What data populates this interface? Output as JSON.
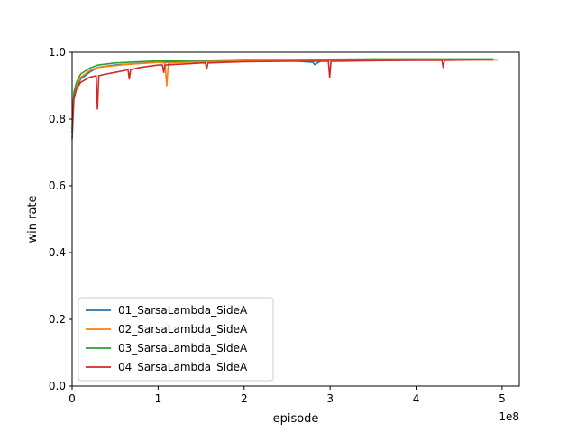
{
  "chart_data": {
    "type": "line",
    "title": "",
    "xlabel": "episode",
    "ylabel": "win rate",
    "x_offset_label": "1e8",
    "xlim": [
      0,
      520000000
    ],
    "ylim": [
      0.0,
      1.0
    ],
    "x_ticks": [
      0,
      100000000,
      200000000,
      300000000,
      400000000,
      500000000
    ],
    "x_tick_labels": [
      "0",
      "1",
      "2",
      "3",
      "4",
      "5"
    ],
    "y_ticks": [
      0.0,
      0.2,
      0.4,
      0.6,
      0.8,
      1.0
    ],
    "y_tick_labels": [
      "0.0",
      "0.2",
      "0.4",
      "0.6",
      "0.8",
      "1.0"
    ],
    "grid": false,
    "legend_position": "lower-left",
    "series": [
      {
        "name": "01_SarsaLambda_SideA",
        "color": "#1f77b4",
        "x": [
          0,
          2000000,
          5000000,
          10000000,
          20000000,
          30000000,
          50000000,
          80000000,
          100000000,
          150000000,
          200000000,
          250000000,
          280000000,
          282000000,
          290000000,
          350000000,
          400000000,
          450000000,
          480000000,
          490000000
        ],
        "y": [
          0.74,
          0.86,
          0.89,
          0.92,
          0.94,
          0.955,
          0.962,
          0.967,
          0.97,
          0.972,
          0.975,
          0.976,
          0.97,
          0.963,
          0.975,
          0.978,
          0.978,
          0.978,
          0.978,
          0.978
        ]
      },
      {
        "name": "02_SarsaLambda_SideA",
        "color": "#ff7f0e",
        "x": [
          0,
          2000000,
          5000000,
          10000000,
          20000000,
          30000000,
          60000000,
          100000000,
          108000000,
          110000000,
          112000000,
          150000000,
          200000000,
          300000000,
          400000000,
          450000000,
          490000000
        ],
        "y": [
          0.76,
          0.87,
          0.9,
          0.925,
          0.945,
          0.955,
          0.963,
          0.97,
          0.968,
          0.9,
          0.968,
          0.972,
          0.974,
          0.976,
          0.977,
          0.977,
          0.977
        ]
      },
      {
        "name": "03_SarsaLambda_SideA",
        "color": "#2ca02c",
        "x": [
          0,
          2000000,
          5000000,
          10000000,
          20000000,
          30000000,
          50000000,
          80000000,
          100000000,
          150000000,
          200000000,
          250000000,
          300000000,
          350000000,
          400000000,
          450000000,
          490000000
        ],
        "y": [
          0.77,
          0.88,
          0.91,
          0.935,
          0.952,
          0.962,
          0.968,
          0.972,
          0.974,
          0.976,
          0.978,
          0.978,
          0.979,
          0.98,
          0.98,
          0.98,
          0.98
        ]
      },
      {
        "name": "04_SarsaLambda_SideA",
        "color": "#d62728",
        "x": [
          0,
          2000000,
          5000000,
          10000000,
          20000000,
          28000000,
          29500000,
          31000000,
          40000000,
          50000000,
          60000000,
          65000000,
          66500000,
          68000000,
          80000000,
          100000000,
          105000000,
          106500000,
          108000000,
          130000000,
          150000000,
          155000000,
          156500000,
          158000000,
          200000000,
          250000000,
          298000000,
          299500000,
          301000000,
          350000000,
          400000000,
          430000000,
          431500000,
          433000000,
          470000000,
          495000000
        ],
        "y": [
          0.76,
          0.86,
          0.89,
          0.91,
          0.925,
          0.93,
          0.83,
          0.93,
          0.935,
          0.94,
          0.945,
          0.948,
          0.92,
          0.948,
          0.955,
          0.962,
          0.962,
          0.94,
          0.962,
          0.965,
          0.968,
          0.968,
          0.95,
          0.968,
          0.972,
          0.973,
          0.973,
          0.925,
          0.973,
          0.975,
          0.976,
          0.976,
          0.955,
          0.976,
          0.977,
          0.977
        ]
      }
    ]
  }
}
